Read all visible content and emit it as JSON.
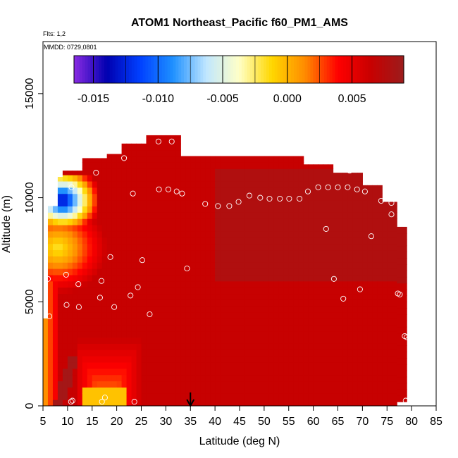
{
  "chart_data": {
    "type": "heatmap",
    "title": "ATOM1 Northeast_Pacific f60_PM1_AMS",
    "annotations": {
      "flights": "Flts: 1,2",
      "dates": "MMDD: 0729,0801"
    },
    "xlabel": "Latitude (deg N)",
    "ylabel": "Altitude (m)",
    "xlim": [
      5,
      85
    ],
    "ylim": [
      0,
      17500
    ],
    "xticks": [
      5,
      10,
      15,
      20,
      25,
      30,
      35,
      40,
      45,
      50,
      55,
      60,
      65,
      70,
      75,
      80,
      85
    ],
    "yticks": [
      0,
      5000,
      10000,
      15000
    ],
    "colorbar": {
      "range": [
        -0.0165,
        0.009
      ],
      "ticks": [
        -0.015,
        -0.01,
        -0.005,
        0.0,
        0.005
      ],
      "tick_labels": [
        "-0.015",
        "-0.010",
        "-0.005",
        "0.000",
        "0.005"
      ],
      "colors": [
        "#8a2be2",
        "#0000b0",
        "#0040ff",
        "#1e90ff",
        "#bfe6ff",
        "#ffffc8",
        "#ffd700",
        "#ff8c00",
        "#ff0000",
        "#c80000",
        "#9b1c1c"
      ]
    },
    "grid": false,
    "field_summary": [
      {
        "lat": [
          5,
          58
        ],
        "alt_m": [
          0,
          12000
        ],
        "value": 0.006
      },
      {
        "lat": [
          7,
          15
        ],
        "alt_m": [
          8000,
          10800
        ],
        "value": -0.008
      },
      {
        "lat": [
          7,
          13
        ],
        "alt_m": [
          9200,
          10800
        ],
        "value": -0.012
      },
      {
        "lat": [
          12,
          24
        ],
        "alt_m": [
          0,
          2200
        ],
        "value": 0.001
      },
      {
        "lat": [
          15,
          25
        ],
        "alt_m": [
          5000,
          9500
        ],
        "value": 0.004
      },
      {
        "lat": [
          60,
          79
        ],
        "alt_m": [
          6000,
          10500
        ],
        "value": 0.008
      }
    ],
    "markers": {
      "name": "flight sample",
      "points": [
        {
          "x": 10.8,
          "y": 10500
        },
        {
          "x": 15.8,
          "y": 11200
        },
        {
          "x": 21.5,
          "y": 11900
        },
        {
          "x": 28.5,
          "y": 12700
        },
        {
          "x": 31.2,
          "y": 12700
        },
        {
          "x": 23.3,
          "y": 10200
        },
        {
          "x": 28.6,
          "y": 10400
        },
        {
          "x": 30.5,
          "y": 10400
        },
        {
          "x": 32.2,
          "y": 10300
        },
        {
          "x": 33.3,
          "y": 10200
        },
        {
          "x": 38.0,
          "y": 9700
        },
        {
          "x": 40.6,
          "y": 9600
        },
        {
          "x": 42.9,
          "y": 9600
        },
        {
          "x": 44.8,
          "y": 9800
        },
        {
          "x": 47.0,
          "y": 10100
        },
        {
          "x": 49.2,
          "y": 10000
        },
        {
          "x": 51.1,
          "y": 9950
        },
        {
          "x": 53.2,
          "y": 9950
        },
        {
          "x": 55.1,
          "y": 9950
        },
        {
          "x": 57.2,
          "y": 9950
        },
        {
          "x": 58.9,
          "y": 10300
        },
        {
          "x": 61.0,
          "y": 10500
        },
        {
          "x": 63.0,
          "y": 10500
        },
        {
          "x": 65.0,
          "y": 10500
        },
        {
          "x": 67.0,
          "y": 10500
        },
        {
          "x": 67.4,
          "y": 11300
        },
        {
          "x": 68.9,
          "y": 10400
        },
        {
          "x": 70.5,
          "y": 10300
        },
        {
          "x": 73.8,
          "y": 9850
        },
        {
          "x": 75.9,
          "y": 9750
        },
        {
          "x": 75.9,
          "y": 9200
        },
        {
          "x": 62.6,
          "y": 8500
        },
        {
          "x": 71.8,
          "y": 8150
        },
        {
          "x": 18.7,
          "y": 7150
        },
        {
          "x": 25.2,
          "y": 7000
        },
        {
          "x": 34.3,
          "y": 6600
        },
        {
          "x": 6.0,
          "y": 6100
        },
        {
          "x": 9.7,
          "y": 6300
        },
        {
          "x": 12.2,
          "y": 5850
        },
        {
          "x": 16.9,
          "y": 6000
        },
        {
          "x": 24.3,
          "y": 5700
        },
        {
          "x": 22.8,
          "y": 5300
        },
        {
          "x": 16.6,
          "y": 5200
        },
        {
          "x": 9.8,
          "y": 4850
        },
        {
          "x": 12.3,
          "y": 4750
        },
        {
          "x": 19.5,
          "y": 4750
        },
        {
          "x": 6.3,
          "y": 4300
        },
        {
          "x": 26.7,
          "y": 4400
        },
        {
          "x": 64.2,
          "y": 6100
        },
        {
          "x": 66.1,
          "y": 5150
        },
        {
          "x": 69.5,
          "y": 5600
        },
        {
          "x": 77.2,
          "y": 5400
        },
        {
          "x": 77.6,
          "y": 5350
        },
        {
          "x": 78.6,
          "y": 3350
        },
        {
          "x": 79.0,
          "y": 3300
        },
        {
          "x": 10.7,
          "y": 200
        },
        {
          "x": 11.0,
          "y": 250
        },
        {
          "x": 17.6,
          "y": 400
        },
        {
          "x": 17.0,
          "y": 200
        },
        {
          "x": 23.6,
          "y": 200
        },
        {
          "x": 78.8,
          "y": 250
        }
      ]
    },
    "arrow": {
      "x": 35,
      "direction": "down"
    }
  }
}
